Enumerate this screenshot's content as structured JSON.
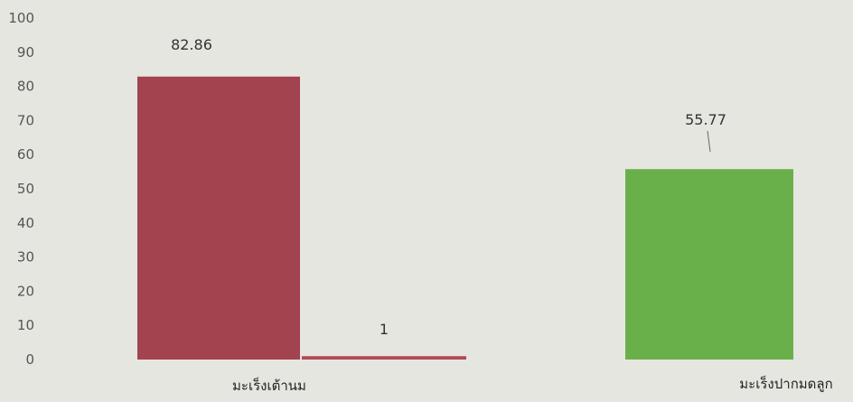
{
  "chart_data": {
    "type": "bar",
    "title": "",
    "xlabel": "",
    "ylabel": "",
    "ylim": [
      0,
      100
    ],
    "yticks": [
      "0",
      "10",
      "20",
      "30",
      "40",
      "50",
      "60",
      "70",
      "80",
      "90",
      "100"
    ],
    "grid": false,
    "bars": [
      {
        "category": "มะเร็งเต้านม",
        "value": 82.86,
        "label": "82.86",
        "color": "#a3434f"
      },
      {
        "category": "มะเร็งเต้านม",
        "value": 1,
        "label": "1",
        "color": "#b24a55"
      },
      {
        "category": "มะเร็งปากมดลูก",
        "value": 55.77,
        "label": "55.77",
        "color": "#6ab04a"
      }
    ],
    "categories": [
      "มะเร็งเต้านม",
      "มะเร็งปากมดลูก"
    ]
  }
}
